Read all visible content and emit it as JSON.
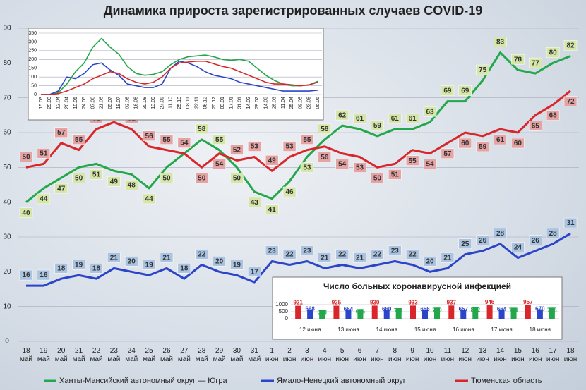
{
  "chart_data": [
    {
      "type": "line",
      "title": "Динамика прироста зарегистрированных случаев COVID-19",
      "categories": [
        "18 май",
        "19 май",
        "20 май",
        "21 май",
        "22 май",
        "23 май",
        "24 май",
        "25 май",
        "26 май",
        "27 май",
        "28 май",
        "29 май",
        "30 май",
        "31 май",
        "1 июн",
        "2 июн",
        "3 июн",
        "4 июн",
        "5 июн",
        "6 июн",
        "7 июн",
        "8 июн",
        "9 июн",
        "10 июн",
        "11 июн",
        "12 июн",
        "13 июн",
        "14 июн",
        "15 июн",
        "16 июн",
        "17 июн",
        "18 июн"
      ],
      "series": [
        {
          "name": "Ханты-Мансийский автономный округ — Югра",
          "color": "#22a84a",
          "label_color": "#d5e6a8",
          "values": [
            40,
            44,
            47,
            50,
            51,
            49,
            48,
            44,
            50,
            54,
            58,
            55,
            50,
            43,
            41,
            46,
            53,
            58,
            62,
            61,
            59,
            61,
            61,
            63,
            69,
            69,
            75,
            83,
            78,
            77,
            80,
            82
          ]
        },
        {
          "name": "Ямало-Ненецкий автономный округ",
          "color": "#2b45c8",
          "label_color": "#a9c3e0",
          "values": [
            16,
            16,
            18,
            19,
            18,
            21,
            20,
            19,
            21,
            18,
            22,
            20,
            19,
            17,
            23,
            22,
            23,
            21,
            22,
            21,
            22,
            23,
            22,
            20,
            21,
            25,
            26,
            28,
            24,
            26,
            28,
            31
          ]
        },
        {
          "name": "Тюменская область",
          "color": "#d8262a",
          "label_color": "#e6a3a3",
          "values": [
            50,
            51,
            57,
            55,
            61,
            63,
            61,
            56,
            55,
            54,
            50,
            54,
            52,
            53,
            49,
            53,
            55,
            56,
            54,
            53,
            50,
            51,
            55,
            54,
            57,
            60,
            59,
            61,
            60,
            65,
            68,
            72
          ]
        }
      ],
      "ylim": [
        0,
        90
      ],
      "yticks": [
        0,
        10,
        20,
        30,
        40,
        50,
        60,
        70,
        80,
        90
      ],
      "grid": true,
      "data_labels": true,
      "legend": "bottom"
    },
    {
      "type": "line",
      "categories": [
        "15.03",
        "29.03",
        "12.04",
        "26.04",
        "10.05",
        "24.05",
        "07.06",
        "21.06",
        "05.07",
        "19.07",
        "02.08",
        "16.08",
        "30.08",
        "13.09",
        "27.09",
        "11.10",
        "25.10",
        "08.11",
        "22.11",
        "06.12",
        "20.12",
        "03.01",
        "17.01",
        "31.01",
        "14.02",
        "28.02",
        "14.03",
        "28.03",
        "11.04",
        "25.04",
        "09.05",
        "23.05",
        "06.06"
      ],
      "series": [
        {
          "color": "#22a84a",
          "values": [
            0,
            0,
            10,
            60,
            130,
            180,
            270,
            320,
            270,
            230,
            160,
            120,
            110,
            115,
            130,
            170,
            200,
            215,
            220,
            225,
            215,
            200,
            195,
            200,
            190,
            150,
            110,
            80,
            60,
            50,
            50,
            55,
            75
          ]
        },
        {
          "color": "#2b45c8",
          "values": [
            0,
            0,
            20,
            100,
            90,
            120,
            170,
            180,
            140,
            110,
            60,
            50,
            40,
            40,
            60,
            150,
            190,
            180,
            160,
            130,
            110,
            100,
            90,
            70,
            60,
            50,
            40,
            30,
            20,
            20,
            20,
            20,
            25
          ]
        },
        {
          "color": "#d8262a",
          "values": [
            0,
            0,
            5,
            20,
            40,
            60,
            90,
            110,
            130,
            120,
            90,
            70,
            60,
            70,
            100,
            150,
            180,
            185,
            190,
            190,
            175,
            160,
            150,
            130,
            110,
            90,
            70,
            60,
            60,
            55,
            50,
            55,
            70
          ]
        }
      ],
      "ylim": [
        0,
        350
      ],
      "yticks": [
        0,
        50,
        100,
        150,
        200,
        250,
        300,
        350
      ],
      "grid": true
    },
    {
      "type": "bar",
      "title": "Число больных коронавирусной  инфекцией",
      "categories": [
        "12 июня",
        "13 июня",
        "14 июня",
        "15 июня",
        "16 июня",
        "17 июня",
        "18 июня"
      ],
      "series": [
        {
          "color": "#d8262a",
          "values": [
            921,
            925,
            930,
            933,
            937,
            946,
            957
          ]
        },
        {
          "color": "#2b45c8",
          "values": [
            668,
            664,
            660,
            656,
            657,
            664,
            670
          ]
        },
        {
          "color": "#22a84a",
          "values": [
            633,
            686,
            751,
            789,
            802,
            781,
            785
          ]
        }
      ],
      "ylim": [
        0,
        1000
      ],
      "yticks": [
        0,
        500,
        1000
      ],
      "grid": true
    }
  ]
}
